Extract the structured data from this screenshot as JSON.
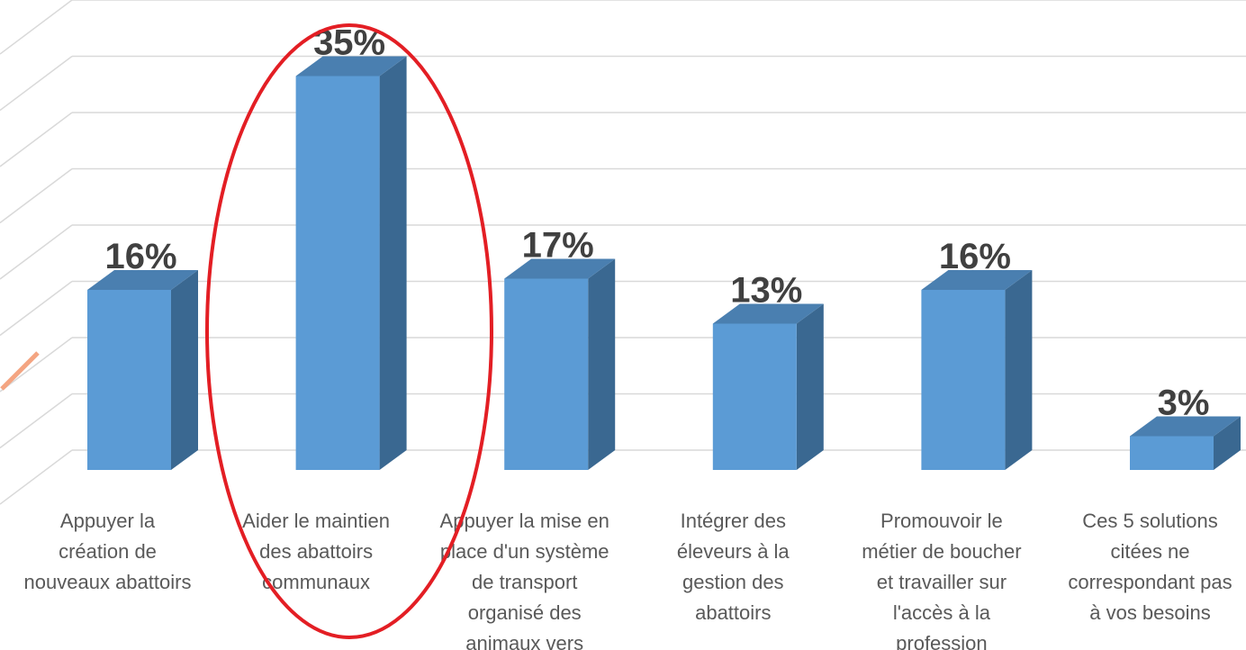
{
  "chart_data": {
    "type": "bar3d",
    "categories": [
      [
        "Appuyer la",
        "création de",
        "nouveaux abattoirs"
      ],
      [
        "Aider le maintien",
        "des abattoirs",
        "communaux"
      ],
      [
        "Appuyer la mise en",
        "place d'un système",
        "de transport",
        "organisé des",
        "animaux vers"
      ],
      [
        "Intégrer des",
        "éleveurs à la",
        "gestion des",
        "abattoirs"
      ],
      [
        "Promouvoir le",
        "métier de boucher",
        "et travailler sur",
        "l'accès à la",
        "profession"
      ],
      [
        "Ces 5 solutions",
        "citées ne",
        "correspondant pas",
        "à vos besoins"
      ]
    ],
    "values": [
      16,
      35,
      17,
      13,
      16,
      3
    ],
    "value_labels": [
      "16%",
      "35%",
      "17%",
      "13%",
      "16%",
      "3%"
    ],
    "color": "#5b9bd5",
    "ylim": [
      0,
      40
    ],
    "yticks": [
      0,
      5,
      10,
      15,
      20,
      25,
      30,
      35,
      40
    ],
    "grid": true
  }
}
